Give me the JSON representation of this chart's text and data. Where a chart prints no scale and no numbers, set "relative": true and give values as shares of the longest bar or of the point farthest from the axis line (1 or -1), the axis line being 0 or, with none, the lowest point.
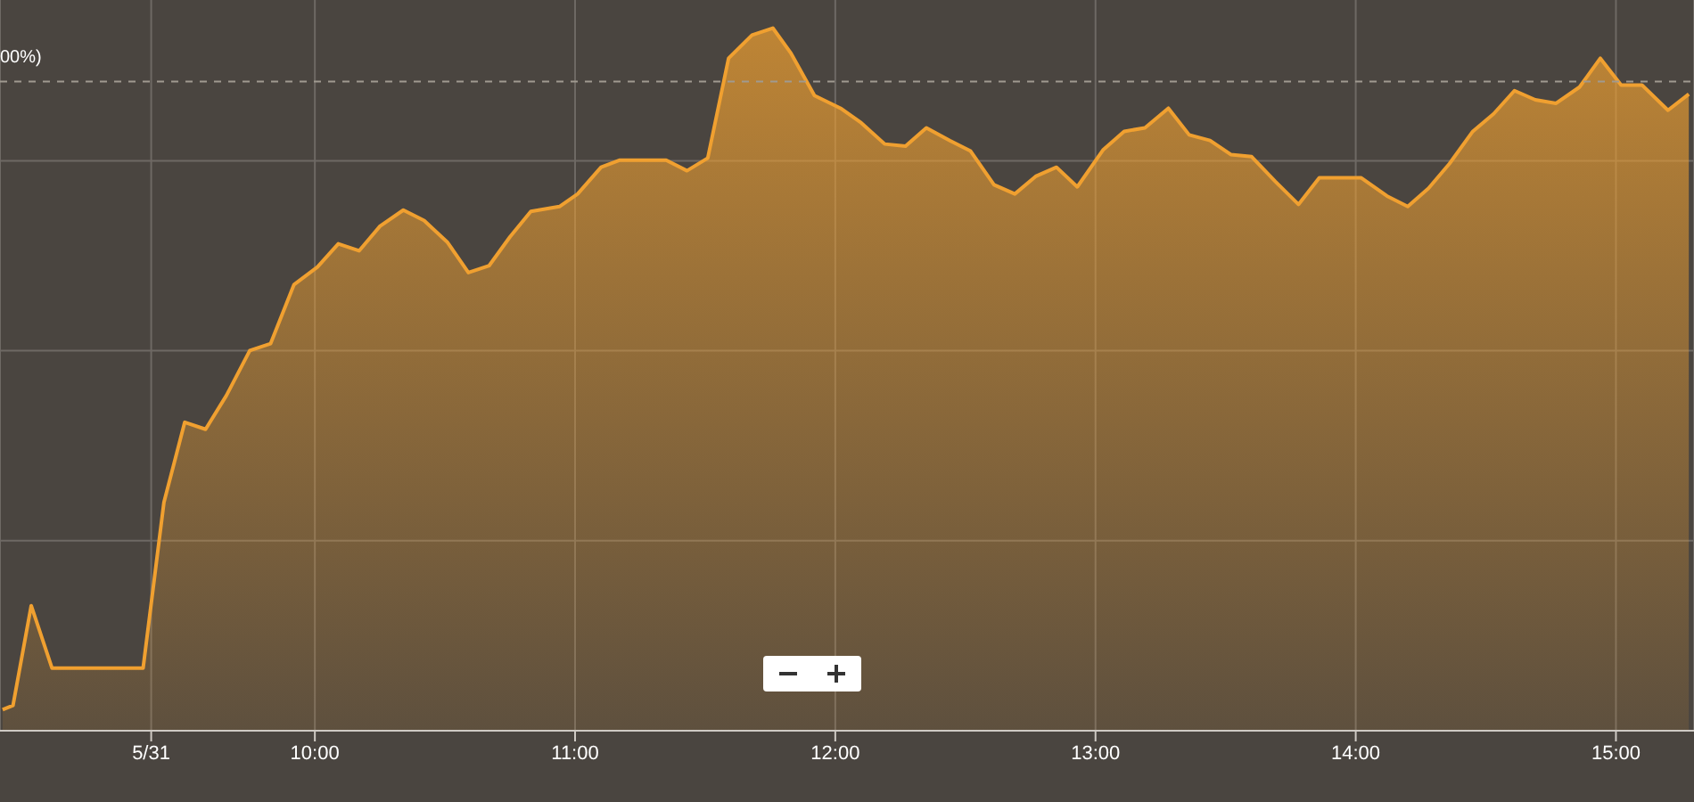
{
  "chart_data": {
    "type": "area",
    "relative": true,
    "color": "#f0a030",
    "x": [
      8.8,
      8.84,
      8.91,
      8.99,
      9.34,
      9.42,
      9.5,
      9.58,
      9.66,
      9.75,
      9.83,
      9.92,
      10.01,
      10.09,
      10.17,
      10.25,
      10.34,
      10.42,
      10.51,
      10.59,
      10.67,
      10.75,
      10.83,
      10.94,
      11.01,
      11.1,
      11.17,
      11.35,
      11.43,
      11.51,
      11.59,
      11.68,
      11.76,
      11.83,
      11.92,
      12.02,
      12.1,
      12.19,
      12.27,
      12.35,
      12.44,
      12.52,
      12.61,
      12.69,
      12.77,
      12.85,
      12.93,
      13.03,
      13.11,
      13.19,
      13.28,
      13.36,
      13.44,
      13.52,
      13.6,
      13.69,
      13.78,
      13.86,
      13.94,
      14.02,
      14.12,
      14.2,
      14.28,
      14.36,
      14.45,
      14.53,
      14.61,
      14.69,
      14.77,
      14.86,
      14.94,
      15.02,
      15.1,
      15.2,
      15.28
    ],
    "values": [
      0.03,
      0.036,
      0.178,
      0.089,
      0.089,
      0.325,
      0.439,
      0.429,
      0.477,
      0.541,
      0.551,
      0.635,
      0.66,
      0.693,
      0.683,
      0.718,
      0.741,
      0.726,
      0.695,
      0.652,
      0.662,
      0.703,
      0.739,
      0.746,
      0.764,
      0.802,
      0.812,
      0.812,
      0.797,
      0.815,
      0.957,
      0.99,
      1,
      0.964,
      0.904,
      0.886,
      0.865,
      0.835,
      0.832,
      0.858,
      0.84,
      0.825,
      0.777,
      0.764,
      0.789,
      0.802,
      0.774,
      0.827,
      0.853,
      0.858,
      0.886,
      0.848,
      0.84,
      0.82,
      0.817,
      0.782,
      0.749,
      0.787,
      0.787,
      0.787,
      0.761,
      0.746,
      0.772,
      0.807,
      0.853,
      0.878,
      0.911,
      0.898,
      0.893,
      0.916,
      0.957,
      0.919,
      0.919,
      0.883,
      0.906
    ],
    "xlim": [
      8.79,
      15.3
    ],
    "xticks": [
      {
        "value": 9.371,
        "label": "5/31"
      },
      {
        "value": 10,
        "label": "10:00"
      },
      {
        "value": 11,
        "label": "11:00"
      },
      {
        "value": 12,
        "label": "12:00"
      },
      {
        "value": 13,
        "label": "13:00"
      },
      {
        "value": 14,
        "label": "14:00"
      },
      {
        "value": 15,
        "label": "15:00"
      }
    ],
    "ref_lines": [
      {
        "axis": "y",
        "value": 0.924,
        "line_style": "dashed",
        "color": "#a09a90"
      }
    ],
    "annotations": [
      "00%)"
    ],
    "grid": true,
    "marker": "none",
    "line_style": "solid"
  }
}
